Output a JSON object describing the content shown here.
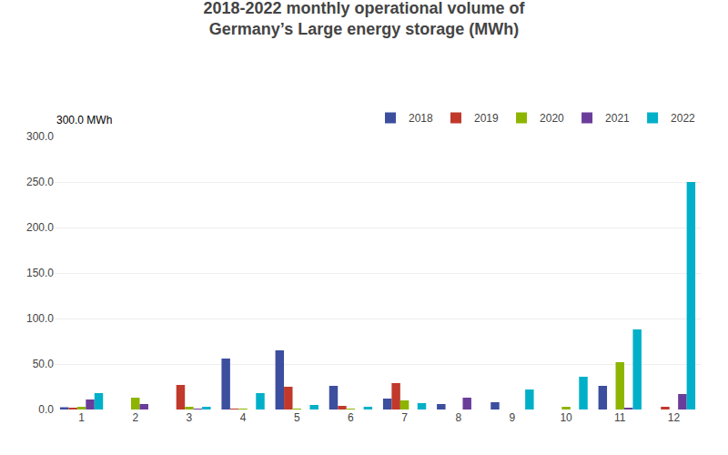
{
  "chart_data": {
    "type": "bar",
    "title": "2018-2022 monthly operational volume of\nGermany’s Large energy storage (MWh)",
    "ylabel": "MWh",
    "annotations": [
      "300.0"
    ],
    "categories": [
      "1",
      "2",
      "3",
      "4",
      "5",
      "6",
      "7",
      "8",
      "9",
      "10",
      "11",
      "12"
    ],
    "series": [
      {
        "name": "2018",
        "color": "#3c4e9e",
        "values": [
          2.5,
          0.0,
          0.0,
          56.0,
          65.0,
          26.0,
          12.0,
          6.0,
          8.0,
          0.0,
          26.0,
          0.0
        ]
      },
      {
        "name": "2019",
        "color": "#c0392b",
        "values": [
          2.0,
          0.0,
          27.0,
          0.5,
          25.0,
          4.0,
          29.0,
          0.0,
          0.0,
          0.0,
          0.0,
          3.0
        ]
      },
      {
        "name": "2020",
        "color": "#8db500",
        "values": [
          3.0,
          13.0,
          3.0,
          0.5,
          0.5,
          0.5,
          10.0,
          0.0,
          0.0,
          3.0,
          52.0,
          0.0
        ]
      },
      {
        "name": "2021",
        "color": "#6b3d9a",
        "values": [
          11.0,
          6.0,
          1.0,
          0.0,
          0.0,
          0.0,
          0.0,
          13.0,
          0.0,
          0.0,
          2.0,
          17.0
        ]
      },
      {
        "name": "2022",
        "color": "#00b0c8",
        "values": [
          18.0,
          0.0,
          3.0,
          18.0,
          5.0,
          3.0,
          7.0,
          0.0,
          22.0,
          36.0,
          88.0,
          250.0
        ]
      }
    ],
    "ylim": [
      0,
      300
    ],
    "yticks": [
      {
        "value": 0,
        "label": "0.0"
      },
      {
        "value": 50,
        "label": "50.0"
      },
      {
        "value": 100,
        "label": "100.0"
      },
      {
        "value": 150,
        "label": "150.0"
      },
      {
        "value": 200,
        "label": "200.0"
      },
      {
        "value": 250,
        "label": "250.0"
      },
      {
        "value": 300,
        "label": "300.0"
      }
    ],
    "grid": true,
    "legend": "top"
  }
}
